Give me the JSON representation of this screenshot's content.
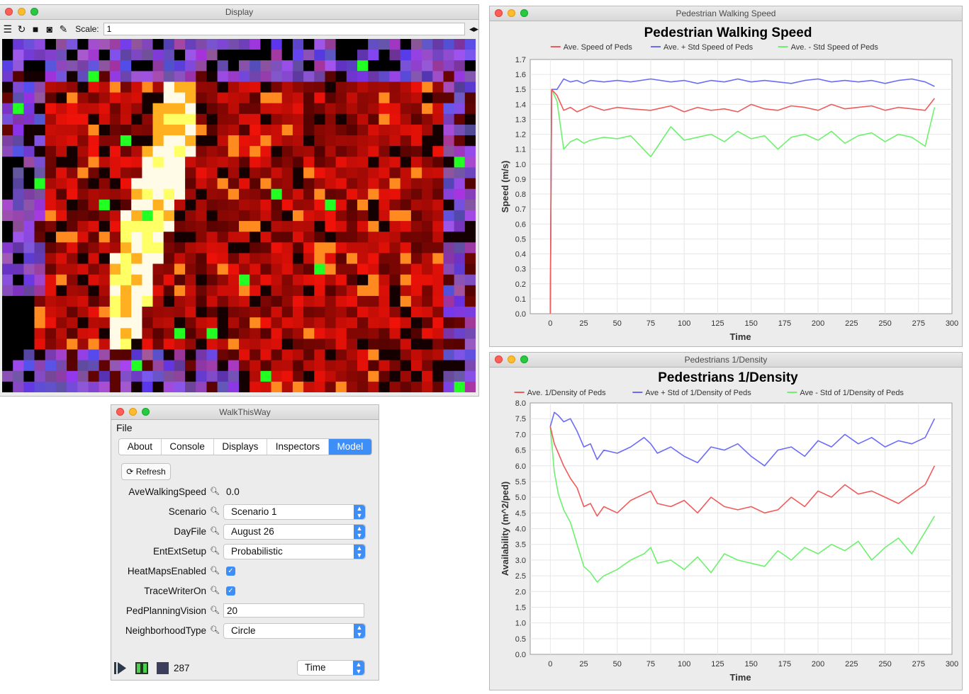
{
  "display_window": {
    "title": "Display",
    "toolbar": {
      "icons": [
        "layers-icon",
        "reload-icon",
        "movie-icon",
        "camera-icon",
        "wrench-icon"
      ],
      "scale_label": "Scale:",
      "scale_value": "1",
      "arrows_icon": "◂▸"
    }
  },
  "walk_window": {
    "title": "WalkThisWay",
    "menu": {
      "file": "File"
    },
    "tabs": [
      "About",
      "Console",
      "Displays",
      "Inspectors",
      "Model"
    ],
    "active_tab": "Model",
    "refresh_label": "Refresh",
    "properties": {
      "ave_walking_speed": {
        "label": "AveWalkingSpeed",
        "value": "0.0"
      },
      "scenario": {
        "label": "Scenario",
        "value": "Scenario 1"
      },
      "dayfile": {
        "label": "DayFile",
        "value": "August 26"
      },
      "entext": {
        "label": "EntExtSetup",
        "value": "Probabilistic"
      },
      "heatmaps": {
        "label": "HeatMapsEnabled",
        "checked": true
      },
      "tracewriter": {
        "label": "TraceWriterOn",
        "checked": true
      },
      "vision": {
        "label": "PedPlanningVision",
        "value": "20"
      },
      "neighborhood": {
        "label": "NeighborhoodType",
        "value": "Circle"
      }
    },
    "controls": {
      "play_icon": "play-icon",
      "pause_icon": "pause-icon",
      "stop_icon": "stop-icon",
      "step_count": "287",
      "time_select": "Time"
    }
  },
  "colors": {
    "accent": "#3d8ff7",
    "red_series": "#f05a5a",
    "blue_series": "#6b6bfa",
    "green_series": "#6cf26c"
  },
  "speed_window": {
    "title": "Pedestrian Walking Speed"
  },
  "density_window": {
    "title": "Pedestrians 1/Density"
  },
  "chart_data": [
    {
      "type": "line",
      "title": "Pedestrian Walking Speed",
      "xlabel": "Time",
      "ylabel": "Speed (m/s)",
      "xlim": [
        -15,
        300
      ],
      "ylim": [
        0,
        1.7
      ],
      "xticks": [
        0,
        25,
        50,
        75,
        100,
        125,
        150,
        175,
        200,
        225,
        250,
        275,
        300
      ],
      "yticks": [
        "0.0",
        "0.1",
        "0.2",
        "0.3",
        "0.4",
        "0.5",
        "0.6",
        "0.7",
        "0.8",
        "0.9",
        "1.0",
        "1.1",
        "1.2",
        "1.3",
        "1.4",
        "1.5",
        "1.6",
        "1.7"
      ],
      "grid": true,
      "legend": "top",
      "x": [
        0,
        1,
        5,
        10,
        15,
        20,
        25,
        30,
        40,
        50,
        60,
        75,
        90,
        100,
        110,
        120,
        130,
        140,
        150,
        160,
        170,
        180,
        190,
        200,
        210,
        220,
        230,
        240,
        250,
        260,
        270,
        280,
        287
      ],
      "series": [
        {
          "name": "Ave. Speed of Peds",
          "color": "#f05a5a",
          "values": [
            0,
            1.5,
            1.46,
            1.36,
            1.38,
            1.35,
            1.37,
            1.39,
            1.36,
            1.38,
            1.37,
            1.36,
            1.39,
            1.35,
            1.38,
            1.36,
            1.37,
            1.35,
            1.4,
            1.37,
            1.36,
            1.39,
            1.38,
            1.36,
            1.4,
            1.37,
            1.38,
            1.39,
            1.36,
            1.38,
            1.37,
            1.36,
            1.44
          ]
        },
        {
          "name": "Ave. + Std Speed of Peds",
          "color": "#6b6bfa",
          "values": [
            0,
            1.5,
            1.5,
            1.57,
            1.55,
            1.56,
            1.54,
            1.56,
            1.55,
            1.56,
            1.55,
            1.57,
            1.55,
            1.56,
            1.54,
            1.56,
            1.55,
            1.57,
            1.55,
            1.56,
            1.55,
            1.54,
            1.56,
            1.57,
            1.55,
            1.56,
            1.55,
            1.56,
            1.54,
            1.56,
            1.57,
            1.55,
            1.52
          ]
        },
        {
          "name": "Ave. - Std Speed of Peds",
          "color": "#6cf26c",
          "values": [
            0,
            1.5,
            1.42,
            1.1,
            1.15,
            1.17,
            1.14,
            1.16,
            1.18,
            1.17,
            1.19,
            1.05,
            1.25,
            1.16,
            1.18,
            1.2,
            1.15,
            1.22,
            1.17,
            1.19,
            1.1,
            1.18,
            1.2,
            1.16,
            1.22,
            1.14,
            1.19,
            1.21,
            1.15,
            1.2,
            1.18,
            1.12,
            1.38
          ]
        }
      ]
    },
    {
      "type": "line",
      "title": "Pedestrians 1/Density",
      "xlabel": "Time",
      "ylabel": "Availability (m^2/ped)",
      "xlim": [
        -15,
        300
      ],
      "ylim": [
        0,
        8
      ],
      "xticks": [
        0,
        25,
        50,
        75,
        100,
        125,
        150,
        175,
        200,
        225,
        250,
        275,
        300
      ],
      "yticks": [
        "0.0",
        "0.5",
        "1.0",
        "1.5",
        "2.0",
        "2.5",
        "3.0",
        "3.5",
        "4.0",
        "4.5",
        "5.0",
        "5.5",
        "6.0",
        "6.5",
        "7.0",
        "7.5",
        "8.0"
      ],
      "grid": true,
      "legend": "top",
      "x": [
        0,
        3,
        6,
        10,
        15,
        20,
        25,
        30,
        35,
        40,
        50,
        60,
        70,
        75,
        80,
        90,
        100,
        110,
        120,
        130,
        140,
        150,
        160,
        170,
        180,
        190,
        200,
        210,
        220,
        230,
        240,
        250,
        260,
        270,
        280,
        287
      ],
      "series": [
        {
          "name": "Ave. 1/Density of Peds",
          "color": "#f05a5a",
          "values": [
            7.25,
            6.7,
            6.4,
            6.0,
            5.6,
            5.3,
            4.7,
            4.8,
            4.4,
            4.7,
            4.5,
            4.9,
            5.1,
            5.2,
            4.8,
            4.7,
            4.9,
            4.5,
            5.0,
            4.7,
            4.6,
            4.7,
            4.5,
            4.6,
            5.0,
            4.7,
            5.2,
            5.0,
            5.4,
            5.1,
            5.2,
            5.0,
            4.8,
            5.1,
            5.4,
            6.0
          ]
        },
        {
          "name": "Ave + Std of 1/Density of Peds",
          "color": "#6b6bfa",
          "values": [
            7.25,
            7.7,
            7.6,
            7.4,
            7.5,
            7.1,
            6.6,
            6.7,
            6.2,
            6.5,
            6.4,
            6.6,
            6.9,
            6.7,
            6.4,
            6.6,
            6.3,
            6.1,
            6.6,
            6.5,
            6.7,
            6.3,
            6.0,
            6.5,
            6.6,
            6.3,
            6.8,
            6.6,
            7.0,
            6.7,
            6.9,
            6.6,
            6.8,
            6.7,
            6.9,
            7.5
          ]
        },
        {
          "name": "Ave - Std of 1/Density of Peds",
          "color": "#6cf26c",
          "values": [
            7.25,
            5.8,
            5.1,
            4.6,
            4.2,
            3.5,
            2.8,
            2.6,
            2.3,
            2.5,
            2.7,
            3.0,
            3.2,
            3.4,
            2.9,
            3.0,
            2.7,
            3.1,
            2.6,
            3.2,
            3.0,
            2.9,
            2.8,
            3.3,
            3.0,
            3.4,
            3.2,
            3.5,
            3.3,
            3.6,
            3.0,
            3.4,
            3.7,
            3.2,
            3.9,
            4.4
          ]
        }
      ]
    }
  ]
}
